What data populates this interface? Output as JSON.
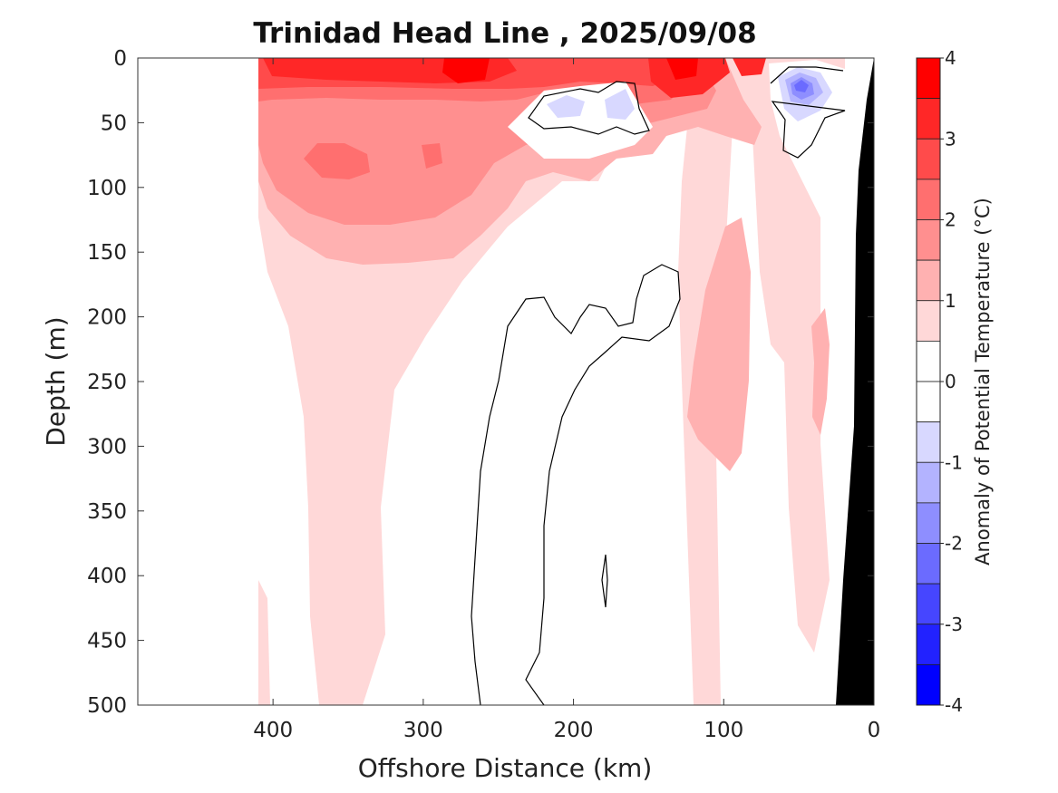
{
  "chart_data": {
    "type": "heatmap",
    "title": "Trinidad Head Line , 2025/09/08",
    "xlabel": "Offshore Distance (km)",
    "ylabel": "Depth (m)",
    "xlim": [
      490,
      0
    ],
    "ylim": [
      0,
      500
    ],
    "x_ticks": [
      400,
      300,
      200,
      100,
      0
    ],
    "x_tick_labels": [
      "400",
      "300",
      "200",
      "100",
      "0"
    ],
    "y_ticks": [
      0,
      50,
      100,
      150,
      200,
      250,
      300,
      350,
      400,
      450,
      500
    ],
    "y_tick_labels": [
      "0",
      "50",
      "100",
      "150",
      "200",
      "250",
      "300",
      "350",
      "400",
      "450",
      "500"
    ],
    "colorbar": {
      "label": "Anomaly of Potential Temperature (°C)",
      "range": [
        -4,
        4
      ],
      "levels": [
        4,
        3.5,
        3,
        2.5,
        2,
        1.5,
        1,
        0.5,
        0,
        -0.5,
        -1,
        -1.5,
        -2,
        -2.5,
        -3,
        -3.5,
        -4
      ],
      "tick_values": [
        4,
        3,
        2,
        1,
        0,
        -1,
        -2,
        -3,
        -4
      ],
      "tick_labels": [
        "4",
        "3",
        "2",
        "1",
        "0",
        "-1",
        "-2",
        "-3",
        "-4"
      ],
      "colors": [
        "#ff0000",
        "#ff2727",
        "#ff4b4b",
        "#ff6f6f",
        "#ff8f8f",
        "#ffb1b1",
        "#ffd8d8",
        "#ffffff",
        "#ffffff",
        "#d8d8ff",
        "#b3b3ff",
        "#8e8eff",
        "#6b6bff",
        "#4646ff",
        "#2222ff",
        "#0000ff"
      ]
    },
    "background_color": "#ffffff",
    "bathymetry_color": "#000000",
    "zero_contour_color": "#000000",
    "data_coverage_km": [
      410,
      20
    ],
    "features": [
      {
        "name": "surface warm layer",
        "x_range": [
          410,
          20
        ],
        "depth_range": [
          0,
          30
        ],
        "anomaly": 3.5
      },
      {
        "name": "subsurface warm core",
        "x_range": [
          380,
          260
        ],
        "depth_range": [
          40,
          300
        ],
        "anomaly": 2.0
      },
      {
        "name": "warm band",
        "x_range": [
          130,
          70
        ],
        "depth_range": [
          150,
          350
        ],
        "anomaly": 1.0
      },
      {
        "name": "cold anomaly near-shore",
        "x_range": [
          80,
          25
        ],
        "depth_range": [
          5,
          70
        ],
        "anomaly": -2.0
      },
      {
        "name": "cold patches mid-section",
        "x_range": [
          230,
          150
        ],
        "depth_range": [
          20,
          60
        ],
        "anomaly": -0.8
      }
    ]
  }
}
